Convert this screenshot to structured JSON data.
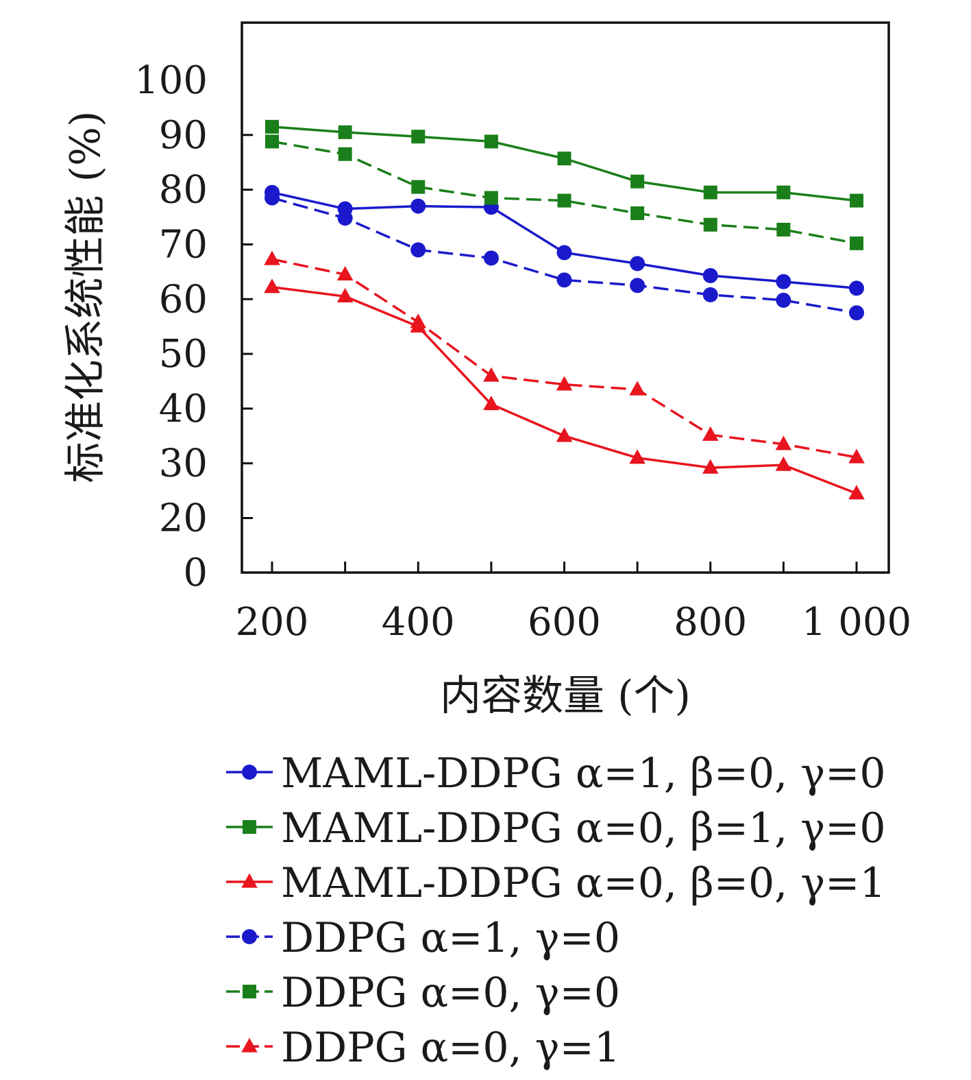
{
  "chart_data": {
    "type": "line",
    "xlabel": "内容数量 (个)",
    "ylabel": "标准化系统性能 (%)",
    "x": [
      200,
      300,
      400,
      500,
      600,
      700,
      800,
      900,
      1000
    ],
    "xticks": [
      {
        "value": 200,
        "label": "200"
      },
      {
        "value": 400,
        "label": "400"
      },
      {
        "value": 600,
        "label": "600"
      },
      {
        "value": 800,
        "label": "800"
      },
      {
        "value": 1000,
        "label": "1 000"
      }
    ],
    "yticks": [
      {
        "value": 0,
        "label": "0"
      },
      {
        "value": 20,
        "label": "20"
      },
      {
        "value": 30,
        "label": "30"
      },
      {
        "value": 40,
        "label": "40"
      },
      {
        "value": 50,
        "label": "50"
      },
      {
        "value": 60,
        "label": "60"
      },
      {
        "value": 70,
        "label": "70"
      },
      {
        "value": 80,
        "label": "80"
      },
      {
        "value": 90,
        "label": "90"
      },
      {
        "value": 100,
        "label": "100"
      }
    ],
    "y_axis_note": "axis has a break: ticks 0 and 20 are spaced like adjacent 10-unit ticks",
    "ylim": [
      0,
      100
    ],
    "xlim": [
      160,
      1040
    ],
    "grid": false,
    "legend_position": "below",
    "series": [
      {
        "name": "MAML-DDPG α=1, β=0, γ=0",
        "color": "#1a1acc",
        "marker": "circle",
        "dash": "solid",
        "values": [
          79.5,
          76.5,
          77,
          76.8,
          68.5,
          66.5,
          64.3,
          63.2,
          62
        ]
      },
      {
        "name": "MAML-DDPG α=0, β=1, γ=0",
        "color": "#1a7f1a",
        "marker": "square",
        "dash": "solid",
        "values": [
          91.5,
          90.5,
          89.7,
          88.8,
          85.7,
          81.5,
          79.5,
          79.5,
          78
        ]
      },
      {
        "name": "MAML-DDPG α=0, β=0, γ=1",
        "color": "#e8141e",
        "marker": "triangle",
        "dash": "solid",
        "values": [
          62.2,
          60.5,
          55,
          40.8,
          35,
          31,
          29.2,
          29.7,
          24.5
        ]
      },
      {
        "name": "DDPG α=1, γ=0",
        "color": "#1a1acc",
        "marker": "circle",
        "dash": "dashed",
        "values": [
          78.5,
          74.8,
          69,
          67.5,
          63.5,
          62.5,
          60.8,
          59.8,
          57.5
        ]
      },
      {
        "name": "DDPG α=0, γ=0",
        "color": "#1a7f1a",
        "marker": "square",
        "dash": "dashed",
        "values": [
          88.8,
          86.5,
          80.5,
          78.5,
          78,
          75.7,
          73.6,
          72.7,
          70.2
        ]
      },
      {
        "name": "DDPG α=0, γ=1",
        "color": "#e8141e",
        "marker": "triangle",
        "dash": "dashed",
        "values": [
          67.3,
          64.5,
          55.8,
          46,
          44.4,
          43.5,
          35.2,
          33.5,
          31.1
        ]
      }
    ]
  }
}
